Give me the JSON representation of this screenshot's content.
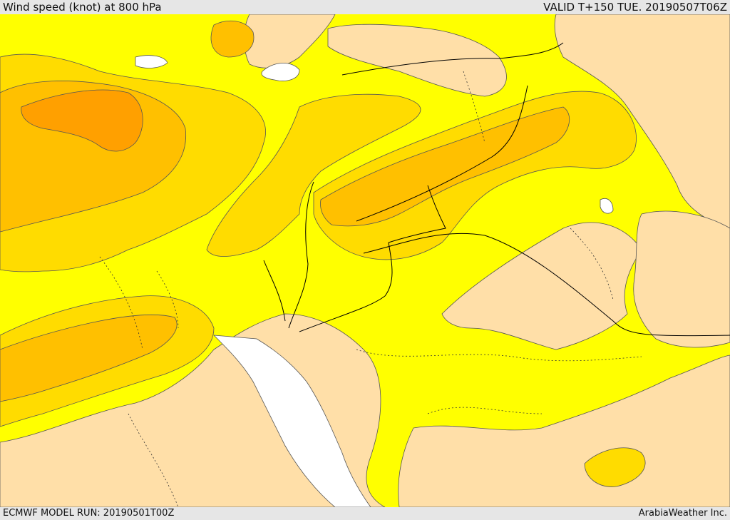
{
  "header": {
    "title": "Wind speed (knot) at 800 hPa",
    "valid": "VALID T+150 TUE. 20190507T06Z"
  },
  "footer": {
    "model_run": "ECMWF MODEL RUN: 20190501T00Z",
    "credit": "ArabiaWeather Inc."
  },
  "colors": {
    "band_lightest": "#ffdfa8",
    "band_yellow": "#ffff00",
    "band_gold": "#ffdc00",
    "band_orange": "#ffc000",
    "band_darkorange": "#ffa000",
    "water": "#ffffff",
    "border": "#000000",
    "contour": "#555555"
  }
}
